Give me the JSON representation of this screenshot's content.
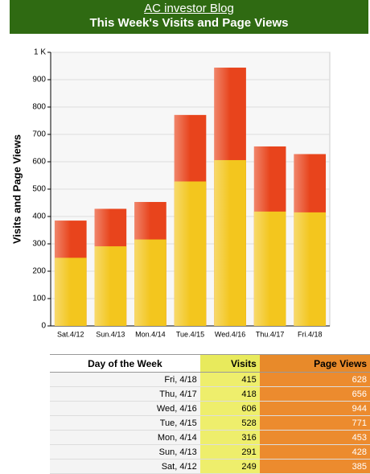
{
  "header": {
    "blog": "AC investor Blog",
    "title": "This Week's Visits and Page Views"
  },
  "chart_data": {
    "type": "bar",
    "overlap": true,
    "ylabel": "Visits and Page Views",
    "categories": [
      "Sat.4/12",
      "Sun.4/13",
      "Mon.4/14",
      "Tue.4/15",
      "Wed.4/16",
      "Thu.4/17",
      "Fri.4/18"
    ],
    "series": [
      {
        "name": "Page Views",
        "color": "#e8441c",
        "values": [
          385,
          428,
          453,
          771,
          944,
          656,
          628
        ]
      },
      {
        "name": "Visits",
        "color": "#f3c61e",
        "values": [
          249,
          291,
          316,
          528,
          606,
          418,
          415
        ]
      }
    ],
    "ylim": [
      0,
      1000
    ],
    "yticks": [
      0,
      100,
      200,
      300,
      400,
      500,
      600,
      700,
      800,
      900,
      {
        "value": 1000,
        "label": "1 K"
      }
    ],
    "grid": true
  },
  "table": {
    "columns": [
      "Day of the Week",
      "Visits",
      "Page Views"
    ],
    "rows": [
      [
        "Fri, 4/18",
        "415",
        "628"
      ],
      [
        "Thu, 4/17",
        "418",
        "656"
      ],
      [
        "Wed, 4/16",
        "606",
        "944"
      ],
      [
        "Tue, 4/15",
        "528",
        "771"
      ],
      [
        "Mon, 4/14",
        "316",
        "453"
      ],
      [
        "Sun, 4/13",
        "291",
        "428"
      ],
      [
        "Sat, 4/12",
        "249",
        "385"
      ]
    ]
  }
}
